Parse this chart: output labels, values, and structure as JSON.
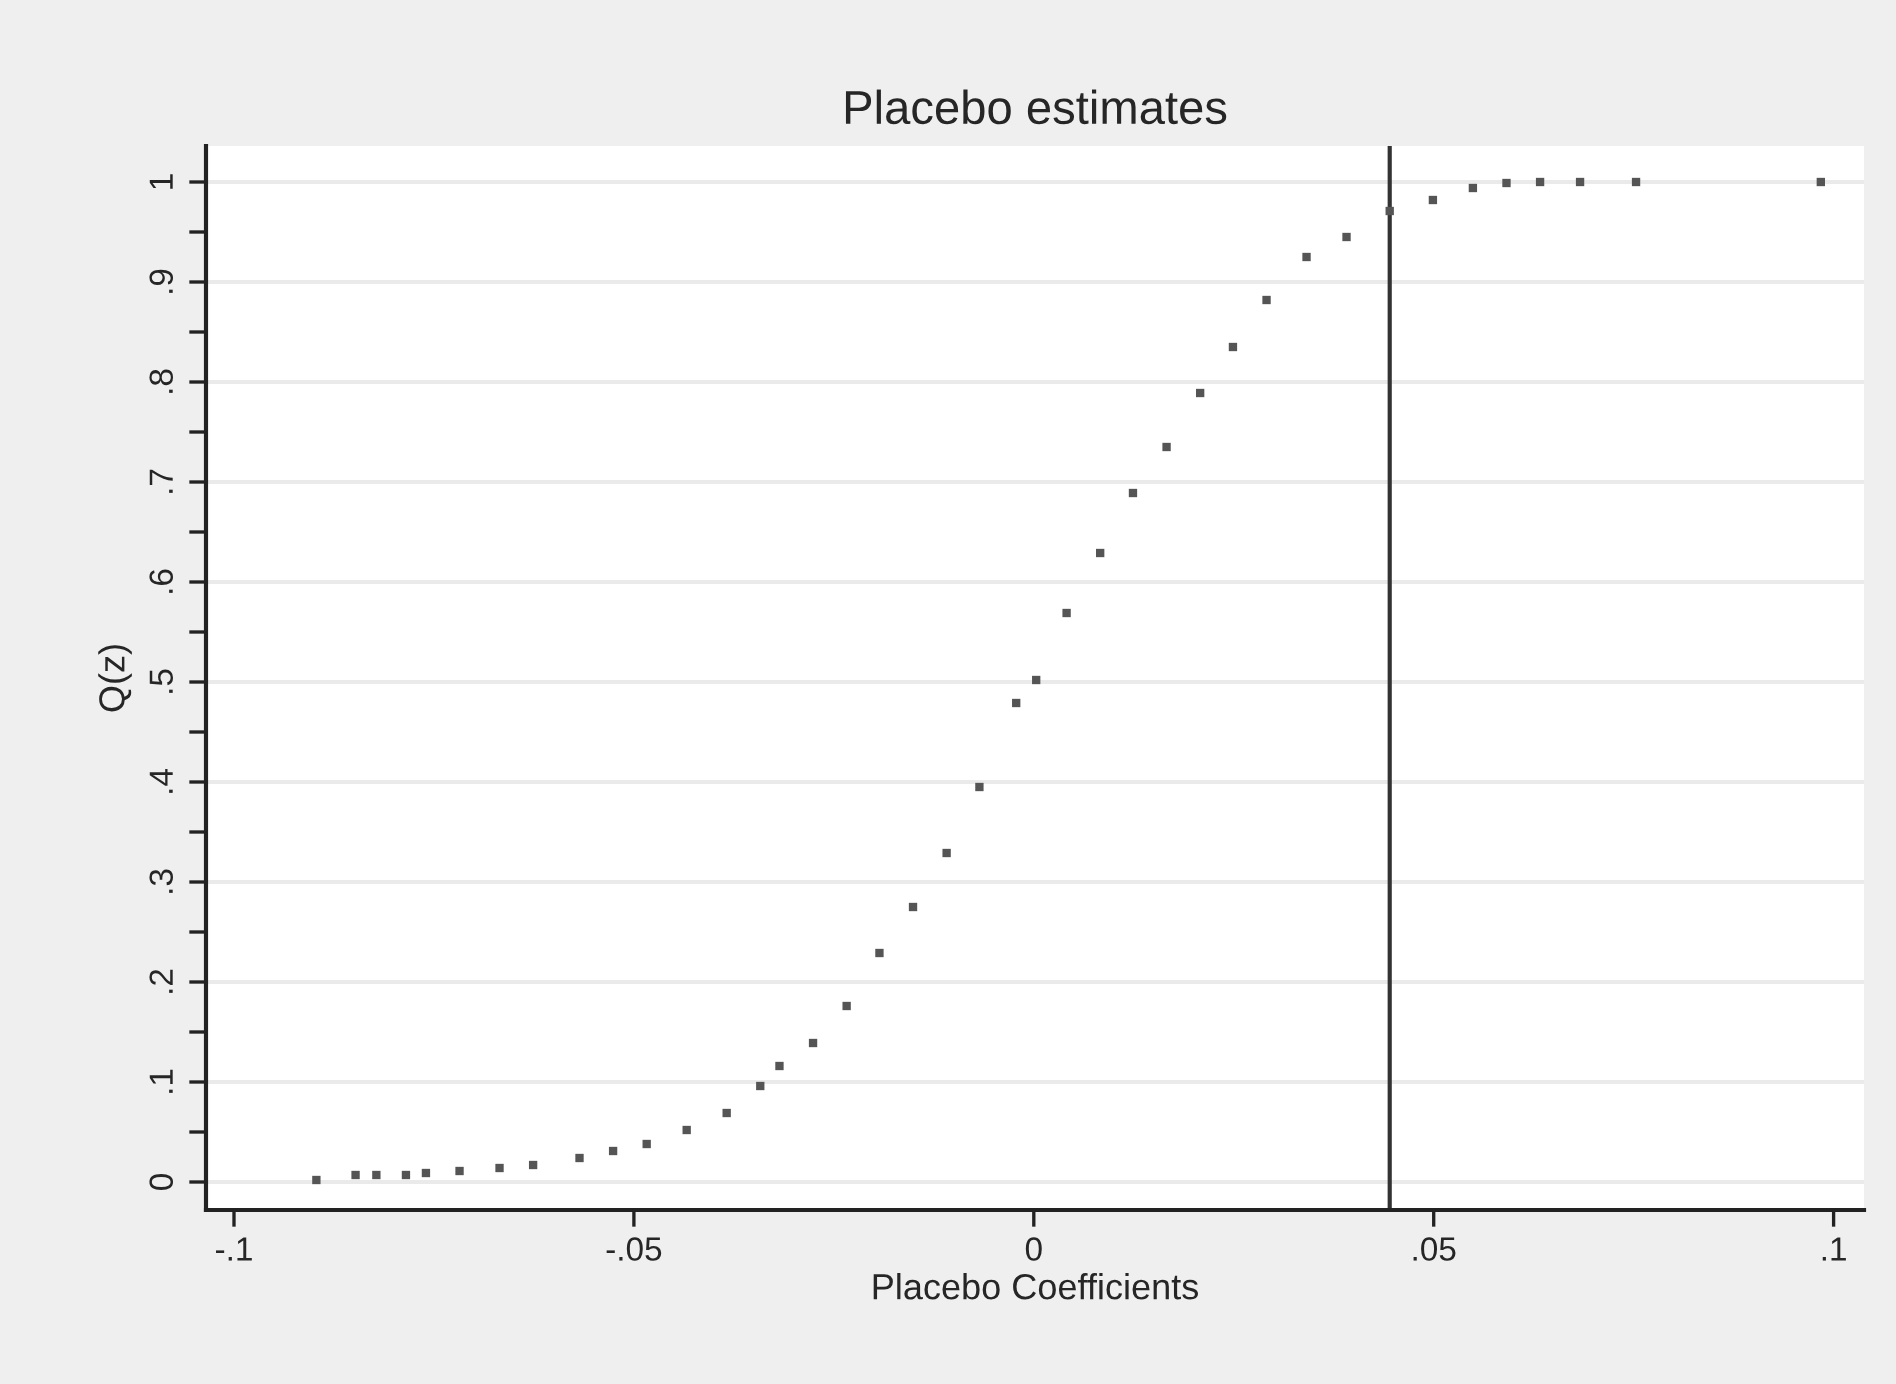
{
  "chart_data": {
    "type": "scatter",
    "title": "Placebo estimates",
    "xlabel": "Placebo Coefficients",
    "ylabel": "Q(z)",
    "x": [
      -0.0897,
      -0.0848,
      -0.0822,
      -0.0785,
      -0.076,
      -0.0718,
      -0.0668,
      -0.0626,
      -0.0568,
      -0.0526,
      -0.0484,
      -0.0434,
      -0.0384,
      -0.0342,
      -0.0318,
      -0.0276,
      -0.0234,
      -0.0193,
      -0.0151,
      -0.0109,
      -0.0068,
      -0.0022,
      0.0003,
      0.0041,
      0.0083,
      0.0124,
      0.0166,
      0.0208,
      0.0249,
      0.0291,
      0.0341,
      0.0391,
      0.0445,
      0.0499,
      0.0549,
      0.0591,
      0.0633,
      0.0683,
      0.0753,
      0.0984
    ],
    "series": [
      {
        "color": "#555555",
        "values": [
          0.002,
          0.007,
          0.007,
          0.007,
          0.009,
          0.011,
          0.014,
          0.017,
          0.024,
          0.031,
          0.038,
          0.052,
          0.069,
          0.096,
          0.116,
          0.139,
          0.176,
          0.229,
          0.275,
          0.329,
          0.395,
          0.479,
          0.502,
          0.569,
          0.629,
          0.689,
          0.735,
          0.789,
          0.835,
          0.882,
          0.925,
          0.945,
          0.971,
          0.982,
          0.994,
          0.999,
          1.0,
          1.0,
          1.0,
          1.0
        ]
      }
    ],
    "marker": "square",
    "xlim": [
      -0.1035,
      0.1038
    ],
    "ylim": [
      -0.028,
      1.036
    ],
    "xticks": [
      {
        "value": -0.1,
        "label": "-.1"
      },
      {
        "value": -0.05,
        "label": "-.05"
      },
      0,
      {
        "value": 0.05,
        "label": ".05"
      },
      {
        "value": 0.1,
        "label": ".1"
      }
    ],
    "yticks": [
      0,
      {
        "value": 0.05,
        "label": null
      },
      {
        "value": 0.1,
        "label": ".1"
      },
      {
        "value": 0.15,
        "label": null
      },
      {
        "value": 0.2,
        "label": ".2"
      },
      {
        "value": 0.25,
        "label": null
      },
      {
        "value": 0.3,
        "label": ".3"
      },
      {
        "value": 0.35,
        "label": null
      },
      {
        "value": 0.4,
        "label": ".4"
      },
      {
        "value": 0.45,
        "label": null
      },
      {
        "value": 0.5,
        "label": ".5"
      },
      {
        "value": 0.55,
        "label": null
      },
      {
        "value": 0.6,
        "label": ".6"
      },
      {
        "value": 0.65,
        "label": null
      },
      {
        "value": 0.7,
        "label": ".7"
      },
      {
        "value": 0.75,
        "label": null
      },
      {
        "value": 0.8,
        "label": ".8"
      },
      {
        "value": 0.85,
        "label": null
      },
      {
        "value": 0.9,
        "label": ".9"
      },
      {
        "value": 0.95,
        "label": null
      },
      1
    ],
    "grid": "y",
    "ref_lines": [
      {
        "axis": "x",
        "value": 0.0445,
        "color": "#333333"
      }
    ]
  }
}
